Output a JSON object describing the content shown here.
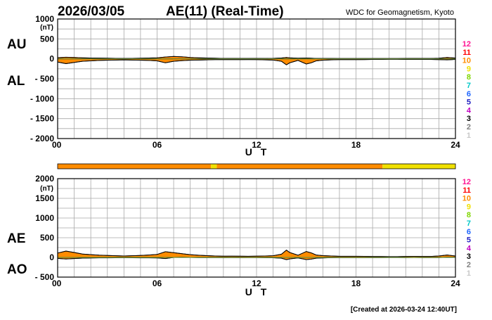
{
  "header": {
    "date": "2026/03/05",
    "title": "AE(11) (Real-Time)",
    "source": "WDC for Geomagnetism, Kyoto"
  },
  "footer": {
    "created": "[Created at 2026-03-24 12:40UT]"
  },
  "unit_label": "(nT)",
  "x_axis_label": "U T",
  "level_legend": {
    "entries": [
      {
        "label": "12",
        "color": "#ff1493"
      },
      {
        "label": "11",
        "color": "#ff0000"
      },
      {
        "label": "10",
        "color": "#ff8c00"
      },
      {
        "label": "9",
        "color": "#f0e000"
      },
      {
        "label": "8",
        "color": "#7fd600"
      },
      {
        "label": "7",
        "color": "#00c8c8"
      },
      {
        "label": "6",
        "color": "#1e66ff"
      },
      {
        "label": "5",
        "color": "#2020c0"
      },
      {
        "label": "4",
        "color": "#c000c0"
      },
      {
        "label": "3",
        "color": "#000000"
      },
      {
        "label": "2",
        "color": "#808080"
      },
      {
        "label": "1",
        "color": "#c8c8c8"
      }
    ]
  },
  "station_bar": {
    "segments": [
      {
        "from": 0,
        "to": 9.25,
        "color": "#ff8c00"
      },
      {
        "from": 9.25,
        "to": 9.6,
        "color": "#f0e000"
      },
      {
        "from": 9.6,
        "to": 19.6,
        "color": "#ff8c00"
      },
      {
        "from": 19.6,
        "to": 24,
        "color": "#f0e000"
      }
    ]
  },
  "colors": {
    "fill": "#ff8c00",
    "fill_late": "#f0e000",
    "grid": "#a8a8a8"
  },
  "chart_data": [
    {
      "type": "area",
      "name": "upper",
      "labels": [
        "AU",
        "AL"
      ],
      "ylabel": "(nT)",
      "xlabel": "U T",
      "xlim": [
        0,
        24
      ],
      "ylim": [
        -2000,
        1000
      ],
      "x_ticks": [
        "00",
        "06",
        "12",
        "18",
        "24"
      ],
      "y_ticks": [
        "1000",
        "500",
        "0",
        "- 500",
        "- 1000",
        "- 1500",
        "- 2000"
      ],
      "x": [
        0,
        0.5,
        1,
        1.5,
        2,
        2.5,
        3,
        3.5,
        4,
        4.5,
        5,
        5.5,
        6,
        6.5,
        7,
        7.5,
        8,
        8.5,
        9,
        9.5,
        10,
        10.5,
        11,
        11.5,
        12,
        12.5,
        13,
        13.5,
        13.8,
        14,
        14.5,
        15,
        15.3,
        15.6,
        16,
        16.5,
        17,
        17.5,
        18,
        18.5,
        19,
        19.5,
        20,
        20.5,
        21,
        21.5,
        22,
        22.5,
        23,
        23.5,
        24
      ],
      "series": [
        {
          "name": "AU",
          "values": [
            30,
            40,
            35,
            25,
            20,
            18,
            15,
            12,
            10,
            12,
            15,
            20,
            25,
            45,
            60,
            50,
            35,
            25,
            20,
            15,
            10,
            12,
            10,
            10,
            12,
            10,
            12,
            20,
            35,
            25,
            15,
            20,
            15,
            10,
            10,
            10,
            8,
            8,
            8,
            8,
            8,
            8,
            8,
            8,
            10,
            12,
            10,
            10,
            15,
            35,
            20
          ]
        },
        {
          "name": "AL",
          "values": [
            -80,
            -120,
            -90,
            -60,
            -50,
            -40,
            -35,
            -30,
            -25,
            -30,
            -35,
            -40,
            -50,
            -100,
            -60,
            -45,
            -35,
            -30,
            -25,
            -20,
            -20,
            -20,
            -20,
            -18,
            -20,
            -25,
            -30,
            -60,
            -150,
            -100,
            -40,
            -130,
            -100,
            -50,
            -35,
            -25,
            -20,
            -20,
            -20,
            -18,
            -15,
            -15,
            -12,
            -12,
            -15,
            -15,
            -15,
            -15,
            -20,
            -25,
            -15
          ]
        }
      ]
    },
    {
      "type": "area",
      "name": "lower",
      "labels": [
        "AE",
        "AO"
      ],
      "ylabel": "(nT)",
      "xlabel": "U T",
      "xlim": [
        0,
        24
      ],
      "ylim": [
        -500,
        2000
      ],
      "x_ticks": [
        "00",
        "06",
        "12",
        "18",
        "24"
      ],
      "y_ticks": [
        "2000",
        "1500",
        "1000",
        "500",
        "0",
        "- 500"
      ],
      "x": [
        0,
        0.5,
        1,
        1.5,
        2,
        2.5,
        3,
        3.5,
        4,
        4.5,
        5,
        5.5,
        6,
        6.5,
        7,
        7.5,
        8,
        8.5,
        9,
        9.5,
        10,
        10.5,
        11,
        11.5,
        12,
        12.5,
        13,
        13.5,
        13.8,
        14,
        14.5,
        15,
        15.3,
        15.6,
        16,
        16.5,
        17,
        17.5,
        18,
        18.5,
        19,
        19.5,
        20,
        20.5,
        21,
        21.5,
        22,
        22.5,
        23,
        23.5,
        24
      ],
      "series": [
        {
          "name": "AE",
          "values": [
            110,
            160,
            125,
            85,
            70,
            58,
            50,
            42,
            35,
            42,
            50,
            60,
            75,
            145,
            120,
            95,
            70,
            55,
            45,
            35,
            30,
            32,
            30,
            28,
            32,
            35,
            42,
            80,
            185,
            125,
            55,
            150,
            115,
            60,
            45,
            35,
            28,
            28,
            28,
            26,
            23,
            23,
            20,
            20,
            25,
            27,
            25,
            25,
            35,
            60,
            35
          ]
        },
        {
          "name": "AO",
          "values": [
            -25,
            -40,
            -28,
            -18,
            -15,
            -11,
            -10,
            -9,
            -8,
            -9,
            -10,
            -10,
            -13,
            -28,
            0,
            3,
            0,
            -3,
            -3,
            -3,
            -5,
            -4,
            -5,
            -4,
            -4,
            -8,
            -9,
            -20,
            -58,
            -38,
            -13,
            -55,
            -43,
            -20,
            -13,
            -8,
            -6,
            -6,
            -6,
            -5,
            -4,
            -4,
            -2,
            -2,
            -3,
            -2,
            -3,
            -3,
            -3,
            5,
            3
          ]
        }
      ]
    }
  ]
}
